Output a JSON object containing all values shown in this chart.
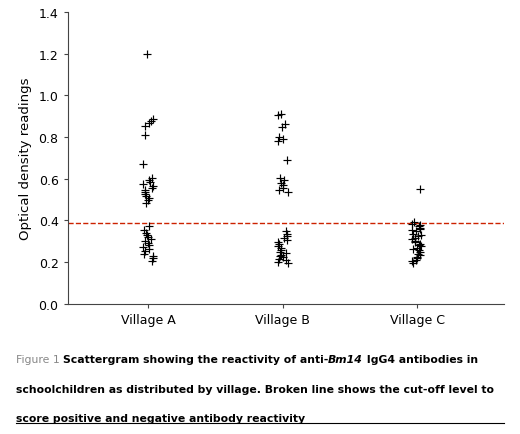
{
  "village_A": [
    1.2,
    0.885,
    0.875,
    0.865,
    0.855,
    0.81,
    0.67,
    0.605,
    0.595,
    0.585,
    0.575,
    0.565,
    0.555,
    0.545,
    0.535,
    0.525,
    0.515,
    0.505,
    0.495,
    0.485,
    0.37,
    0.355,
    0.34,
    0.33,
    0.32,
    0.31,
    0.3,
    0.29,
    0.28,
    0.27,
    0.26,
    0.25,
    0.24,
    0.23,
    0.22,
    0.205
  ],
  "village_B": [
    0.91,
    0.905,
    0.86,
    0.85,
    0.8,
    0.79,
    0.78,
    0.69,
    0.605,
    0.595,
    0.58,
    0.57,
    0.555,
    0.545,
    0.535,
    0.35,
    0.335,
    0.325,
    0.315,
    0.305,
    0.295,
    0.285,
    0.275,
    0.265,
    0.255,
    0.248,
    0.242,
    0.235,
    0.228,
    0.222,
    0.215,
    0.208,
    0.2,
    0.195
  ],
  "village_C": [
    0.55,
    0.39,
    0.38,
    0.375,
    0.37,
    0.365,
    0.36,
    0.355,
    0.35,
    0.335,
    0.328,
    0.322,
    0.315,
    0.308,
    0.302,
    0.295,
    0.288,
    0.282,
    0.275,
    0.268,
    0.262,
    0.255,
    0.248,
    0.24,
    0.232,
    0.225,
    0.218,
    0.21,
    0.202,
    0.195
  ],
  "cutoff": 0.385,
  "ylabel": "Optical density readings",
  "xtick_labels": [
    "Village A",
    "Village B",
    "Village C"
  ],
  "ylim": [
    0.0,
    1.4
  ],
  "yticks": [
    0.0,
    0.2,
    0.4,
    0.6,
    0.8,
    1.0,
    1.2,
    1.4
  ],
  "cutoff_color": "#cc2200",
  "marker_color": "black",
  "bg_color": "white",
  "fig1_color": "#888888",
  "caption_line2": "schoolchildren as distributed by village. Broken line shows the cut-off level to",
  "caption_line3": "score positive and negative antibody reactivity",
  "caption_pre": "Scattergram showing the reactivity of anti-",
  "caption_italic": "Bm14",
  "caption_post": " IgG4 antibodies in"
}
